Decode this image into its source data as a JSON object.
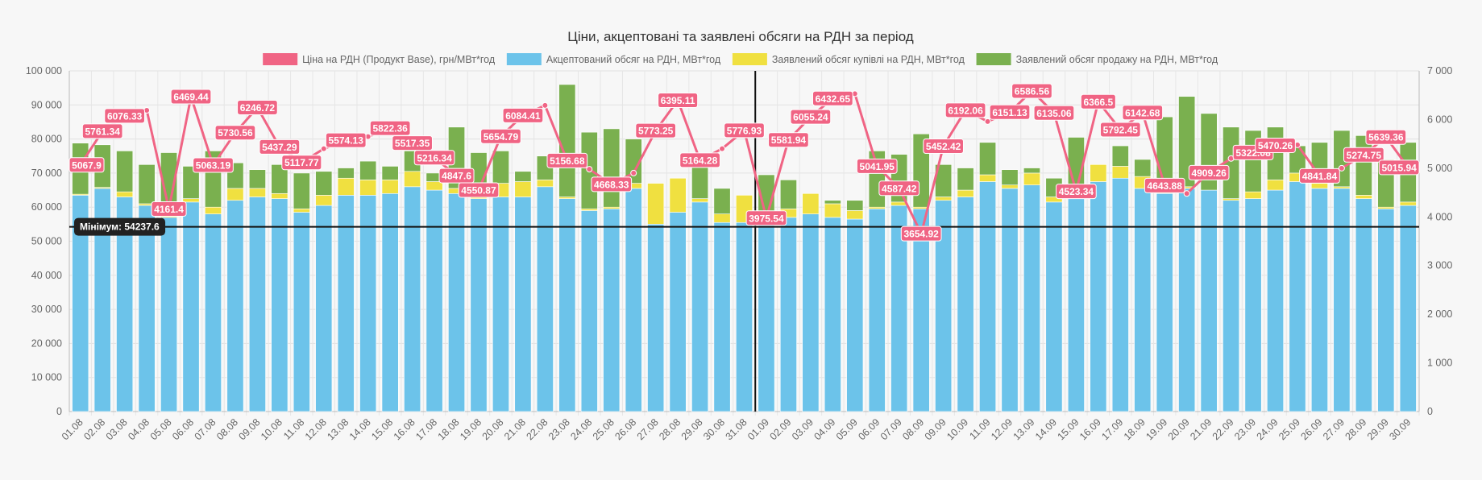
{
  "chart_data": {
    "type": "bar",
    "title": "Ціни, акцептовані та заявлені обсяги на РДН за період",
    "legend_position": "top",
    "grid": true,
    "stacked": true,
    "y_left": {
      "ylim": [
        0,
        100000
      ],
      "ticks": [
        "0",
        "10 000",
        "20 000",
        "30 000",
        "40 000",
        "50 000",
        "60 000",
        "70 000",
        "80 000",
        "90 000",
        "100 000"
      ]
    },
    "y_right": {
      "ylim": [
        0,
        7000
      ],
      "ticks": [
        "0",
        "1 000",
        "2 000",
        "3 000",
        "4 000",
        "5 000",
        "6 000",
        "7 000"
      ]
    },
    "categories": [
      "01.08",
      "02.08",
      "03.08",
      "04.08",
      "05.08",
      "06.08",
      "07.08",
      "08.08",
      "09.08",
      "10.08",
      "11.08",
      "12.08",
      "13.08",
      "14.08",
      "15.08",
      "16.08",
      "17.08",
      "18.08",
      "19.08",
      "20.08",
      "21.08",
      "22.08",
      "23.08",
      "24.08",
      "25.08",
      "26.08",
      "27.08",
      "28.08",
      "29.08",
      "30.08",
      "31.08",
      "01.09",
      "02.09",
      "03.09",
      "04.09",
      "05.09",
      "06.09",
      "07.09",
      "08.09",
      "09.09",
      "10.09",
      "11.09",
      "12.09",
      "13.09",
      "14.09",
      "15.09",
      "16.09",
      "17.09",
      "18.09",
      "19.09",
      "20.09",
      "21.09",
      "22.09",
      "23.09",
      "24.09",
      "25.09",
      "26.09",
      "27.09",
      "28.09",
      "29.09",
      "30.09"
    ],
    "series": [
      {
        "name": "Ціна на РДН (Продукт Base), грн/МВт*год",
        "type": "line",
        "axis": "right",
        "color": "#f06484",
        "values": [
          5067.9,
          5761.34,
          6076.33,
          6190,
          4161.4,
          6469.44,
          5063.19,
          5730.56,
          6246.72,
          5437.29,
          5117.77,
          5400,
          5574.13,
          5650,
          5822.36,
          5517.35,
          5216.34,
          4847.6,
          4550.87,
          5654.79,
          6084.41,
          6290,
          5156.68,
          4980,
          4668.33,
          4900,
          5773.25,
          6395.11,
          5164.28,
          5400,
          5776.93,
          3975.54,
          5581.94,
          6055.24,
          6432.65,
          6530,
          5041.95,
          4587.42,
          3654.92,
          5452.42,
          6192.06,
          5960,
          6151.13,
          6586.56,
          6135.06,
          4523.34,
          6366.5,
          5792.45,
          6142.68,
          4643.88,
          4480,
          4909.26,
          5200,
          5322.08,
          5470.26,
          5480,
          4841.84,
          5000,
          5274.75,
          5639.36,
          5015.94
        ],
        "labels": [
          "5067.9",
          "5761.34",
          "6076.33",
          "",
          "4161.4",
          "6469.44",
          "5063.19",
          "5730.56",
          "6246.72",
          "5437.29",
          "5117.77",
          "",
          "5574.13",
          "",
          "5822.36",
          "5517.35",
          "5216.34",
          "4847.6",
          "4550.87",
          "5654.79",
          "6084.41",
          "",
          "5156.68",
          "",
          "4668.33",
          "",
          "5773.25",
          "6395.11",
          "5164.28",
          "",
          "5776.93",
          "3975.54",
          "5581.94",
          "6055.24",
          "6432.65",
          "",
          "5041.95",
          "4587.42",
          "3654.92",
          "5452.42",
          "6192.06",
          "",
          "6151.13",
          "6586.56",
          "6135.06",
          "4523.34",
          "6366.5",
          "5792.45",
          "6142.68",
          "4643.88",
          "",
          "4909.26",
          "",
          "5322.08",
          "5470.26",
          "",
          "4841.84",
          "",
          "5274.75",
          "5639.36",
          "5015.94"
        ]
      },
      {
        "name": "Акцептований обсяг на РДН, МВт*год",
        "type": "bar",
        "axis": "left",
        "color": "#6cc3ea",
        "values": [
          63500,
          65500,
          63000,
          60500,
          57000,
          61500,
          58000,
          62000,
          63000,
          62500,
          58500,
          60500,
          63500,
          63500,
          64000,
          66000,
          65000,
          64000,
          62500,
          63000,
          63000,
          66000,
          62500,
          59000,
          59500,
          65500,
          55000,
          58500,
          61500,
          55500,
          55500,
          55000,
          57000,
          58000,
          57000,
          56500,
          59500,
          60500,
          59500,
          62000,
          63000,
          67500,
          65500,
          66500,
          61500,
          64000,
          67500,
          68500,
          65500,
          64000,
          65500,
          65000,
          62000,
          62500,
          65000,
          67500,
          65500,
          65500,
          62500,
          59500,
          60500
        ]
      },
      {
        "name": "Заявлений обсяг купівлі на РДН, МВт*год",
        "type": "bar",
        "axis": "left",
        "color": "#f0e040",
        "values": [
          300,
          300,
          1500,
          500,
          500,
          1000,
          2000,
          3500,
          2500,
          1500,
          1000,
          3000,
          5000,
          4500,
          4000,
          4500,
          2500,
          1500,
          1000,
          4000,
          4500,
          2000,
          500,
          500,
          500,
          1500,
          12000,
          10000,
          1000,
          2500,
          8000,
          0,
          2500,
          6000,
          4000,
          2500,
          500,
          1000,
          500,
          1000,
          2000,
          2000,
          1000,
          3500,
          1500,
          1500,
          5000,
          3500,
          3500,
          2000,
          500,
          0,
          500,
          2000,
          3000,
          2500,
          1500,
          500,
          1000,
          500,
          1000
        ]
      },
      {
        "name": "Заявлений обсяг продажу на РДН, МВт*год",
        "type": "bar",
        "axis": "left",
        "color": "#7ab04f",
        "values": [
          15000,
          12500,
          12000,
          11500,
          18500,
          9500,
          16500,
          7500,
          5500,
          8500,
          10500,
          7000,
          3000,
          5500,
          4000,
          6000,
          2500,
          18000,
          12500,
          9500,
          3000,
          7000,
          33000,
          22500,
          23000,
          13000,
          0,
          0,
          9500,
          7500,
          0,
          14500,
          8500,
          0,
          1000,
          3000,
          16500,
          14000,
          21500,
          9500,
          6500,
          9500,
          4500,
          1500,
          5500,
          15000,
          0,
          6000,
          5000,
          20500,
          26500,
          22500,
          21000,
          18000,
          15500,
          8000,
          12000,
          16500,
          17500,
          14000,
          17500
        ]
      }
    ],
    "annotations": [
      {
        "type": "horizontal-line",
        "axis": "left",
        "value": 54237.6,
        "label": "Мінімум: 54237.6"
      },
      {
        "type": "vertical-line",
        "between": [
          "31.08",
          "01.09"
        ]
      }
    ]
  }
}
